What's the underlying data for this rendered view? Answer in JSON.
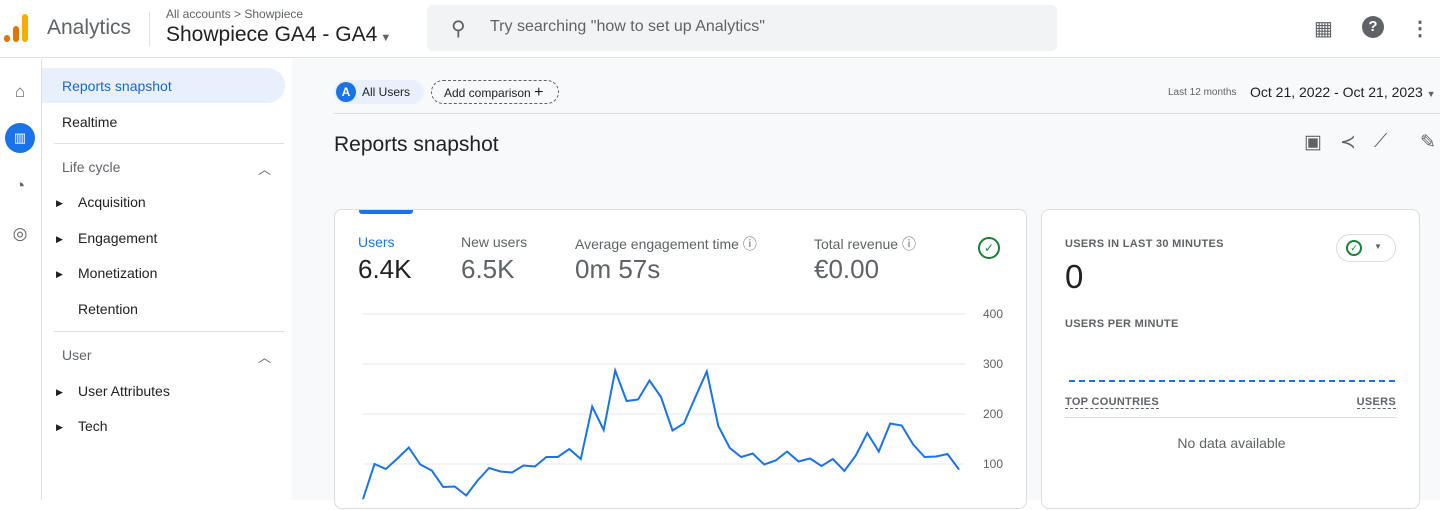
{
  "header": {
    "app_name": "Analytics",
    "breadcrumb": "All accounts > Showpiece",
    "property": "Showpiece GA4 - GA4",
    "search_placeholder": "Try searching \"how to set up Analytics\""
  },
  "sidebar": {
    "reports_snapshot": "Reports snapshot",
    "realtime": "Realtime",
    "lifecycle": "Life cycle",
    "lifecycle_items": [
      "Acquisition",
      "Engagement",
      "Monetization",
      "Retention"
    ],
    "user": "User",
    "user_items": [
      "User Attributes",
      "Tech"
    ]
  },
  "toolbar": {
    "segment_badge": "A",
    "segment": "All Users",
    "add_comparison": "Add comparison",
    "date_label": "Last 12 months",
    "date_range": "Oct 21, 2022 - Oct 21, 2023"
  },
  "page_title": "Reports snapshot",
  "metrics": [
    {
      "label": "Users",
      "value": "6.4K"
    },
    {
      "label": "New users",
      "value": "6.5K"
    },
    {
      "label": "Average engagement time",
      "value": "0m 57s"
    },
    {
      "label": "Total revenue",
      "value": "€0.00"
    }
  ],
  "realtime": {
    "title": "USERS IN LAST 30 MINUTES",
    "value": "0",
    "per_minute": "USERS PER MINUTE",
    "countries_col": "TOP COUNTRIES",
    "users_col": "USERS",
    "empty": "No data available"
  },
  "colors": {
    "accent": "#1a73e8",
    "line": "#1a73e8",
    "logo_orange": "#f9ab00",
    "logo_dark": "#e37400"
  },
  "chart_data": {
    "type": "line",
    "series": [
      {
        "name": "Users",
        "values": [
          30,
          100,
          90,
          111,
          133,
          99,
          87,
          54,
          55,
          37,
          67,
          92,
          85,
          83,
          97,
          95,
          114,
          114,
          130,
          110,
          215,
          168,
          287,
          226,
          229,
          267,
          234,
          167,
          181,
          234,
          285,
          176,
          132,
          114,
          121,
          99,
          107,
          125,
          105,
          111,
          96,
          110,
          86,
          117,
          162,
          125,
          181,
          177,
          139,
          114,
          115,
          120,
          89
        ]
      }
    ],
    "yticks": [
      "400",
      "300",
      "200",
      "100"
    ],
    "ylim": [
      0,
      400
    ],
    "grid": true
  }
}
